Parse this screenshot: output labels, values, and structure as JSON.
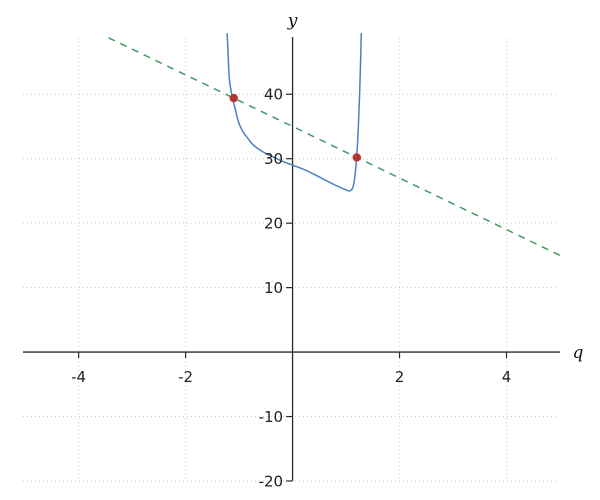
{
  "chart_data": {
    "type": "line",
    "title": "",
    "xlabel": "q",
    "ylabel": "y",
    "xlim": [
      -5.04,
      5.0
    ],
    "ylim": [
      -20,
      49.5
    ],
    "grid": "dotted",
    "legend": "none",
    "x_ticks": [
      -4,
      -2,
      2,
      4
    ],
    "y_ticks": [
      -20,
      -10,
      10,
      20,
      30,
      40
    ],
    "series": [
      {
        "name": "blue-curve",
        "style": "solid",
        "color": "#4a80c2",
        "description": "U-shaped solid curve, near-vertical branches at q≈-1.22 and q≈1.29, minimum ≈25 near q≈1.05, crosses y-axis at ≈29",
        "points": [
          [
            -1.224,
            49.4
          ],
          [
            -1.21,
            47.2
          ],
          [
            -1.198,
            44.6
          ],
          [
            -1.183,
            42.5
          ],
          [
            -1.16,
            41.0
          ],
          [
            -1.12,
            39.3
          ],
          [
            -1.066,
            37.5
          ],
          [
            -1.01,
            35.7
          ],
          [
            -0.935,
            34.3
          ],
          [
            -0.84,
            33.2
          ],
          [
            -0.73,
            32.1
          ],
          [
            -0.56,
            31.1
          ],
          [
            -0.37,
            30.3
          ],
          [
            -0.19,
            29.6
          ],
          [
            0.0,
            29.0
          ],
          [
            0.25,
            28.2
          ],
          [
            0.56,
            26.9
          ],
          [
            0.8,
            25.9
          ],
          [
            0.99,
            25.2
          ],
          [
            1.07,
            25.0
          ],
          [
            1.12,
            25.4
          ],
          [
            1.15,
            26.4
          ],
          [
            1.178,
            28.2
          ],
          [
            1.196,
            30.2
          ],
          [
            1.215,
            32.4
          ],
          [
            1.235,
            36.0
          ],
          [
            1.253,
            39.9
          ],
          [
            1.27,
            44.5
          ],
          [
            1.285,
            49.4
          ]
        ]
      },
      {
        "name": "dashed-line",
        "style": "dashed",
        "color": "#3f9b63",
        "equation": "y = 35 - 4q",
        "points": [
          [
            -3.44,
            48.76
          ],
          [
            5.0,
            15.0
          ]
        ]
      }
    ],
    "markers": [
      {
        "name": "intersection-1",
        "x": -1.1,
        "y": 39.4,
        "color": "#b5342f"
      },
      {
        "name": "intersection-2",
        "x": 1.2,
        "y": 30.2,
        "color": "#b5342f"
      }
    ],
    "style": {
      "background": "#ffffff",
      "axis_color": "#2a2a2a",
      "grid_color": "#c9c9c9",
      "text_color": "#1f1f1f",
      "curve_color": "#4a80c2",
      "dash_color": "#3f9b63",
      "point_color": "#b5342f"
    }
  }
}
